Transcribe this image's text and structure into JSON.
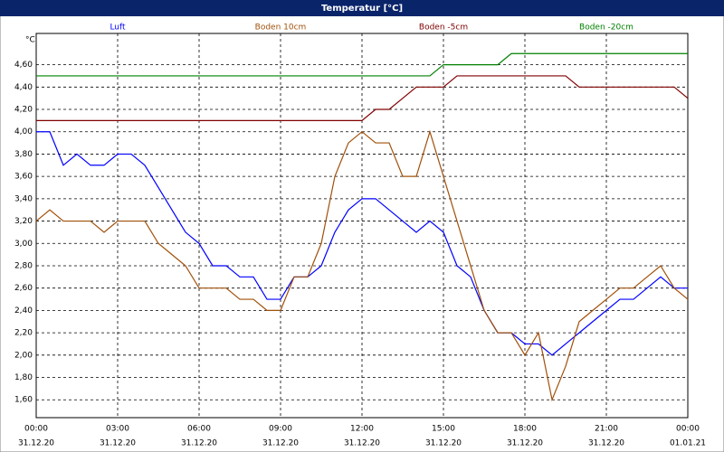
{
  "chart_data": {
    "type": "line",
    "title": "Temperatur [°C]",
    "y_unit_label": "°C",
    "legend": "top",
    "grid": true,
    "x": [
      0,
      0.5,
      1,
      1.5,
      2,
      2.5,
      3,
      3.5,
      4,
      4.5,
      5,
      5.5,
      6,
      6.5,
      7,
      7.5,
      8,
      8.5,
      9,
      9.5,
      10,
      10.5,
      11,
      11.5,
      12,
      12.5,
      13,
      13.5,
      14,
      14.5,
      15,
      15.5,
      16,
      16.5,
      17,
      17.5,
      18,
      18.5,
      19,
      19.5,
      20,
      20.5,
      21,
      21.5,
      22,
      22.5,
      23,
      23.5,
      24
    ],
    "xlim": [
      0,
      24
    ],
    "xticks": [
      {
        "value": 0,
        "label": "00:00"
      },
      {
        "value": 3,
        "label": "03:00"
      },
      {
        "value": 6,
        "label": "06:00"
      },
      {
        "value": 9,
        "label": "09:00"
      },
      {
        "value": 12,
        "label": "12:00"
      },
      {
        "value": 15,
        "label": "15:00"
      },
      {
        "value": 18,
        "label": "18:00"
      },
      {
        "value": 21,
        "label": "21:00"
      },
      {
        "value": 24,
        "label": "00:00"
      }
    ],
    "xtick_dates": [
      "31.12.20",
      "31.12.20",
      "31.12.20",
      "31.12.20",
      "31.12.20",
      "31.12.20",
      "31.12.20",
      "31.12.20",
      "01.01.21"
    ],
    "ylim": [
      1.44,
      4.88
    ],
    "yticks": [
      {
        "value": 1.6,
        "label": "1,60"
      },
      {
        "value": 1.8,
        "label": "1,80"
      },
      {
        "value": 2.0,
        "label": "2,00"
      },
      {
        "value": 2.2,
        "label": "2,20"
      },
      {
        "value": 2.4,
        "label": "2,40"
      },
      {
        "value": 2.6,
        "label": "2,60"
      },
      {
        "value": 2.8,
        "label": "2,80"
      },
      {
        "value": 3.0,
        "label": "3,00"
      },
      {
        "value": 3.2,
        "label": "3,20"
      },
      {
        "value": 3.4,
        "label": "3,40"
      },
      {
        "value": 3.6,
        "label": "3,60"
      },
      {
        "value": 3.8,
        "label": "3,80"
      },
      {
        "value": 4.0,
        "label": "4,00"
      },
      {
        "value": 4.2,
        "label": "4,20"
      },
      {
        "value": 4.4,
        "label": "4,40"
      },
      {
        "value": 4.6,
        "label": "4,60"
      }
    ],
    "series": [
      {
        "name": "Luft",
        "color": "#0000ff",
        "values": [
          4.0,
          4.0,
          3.7,
          3.8,
          3.7,
          3.7,
          3.8,
          3.8,
          3.7,
          3.5,
          3.3,
          3.1,
          3.0,
          2.8,
          2.8,
          2.7,
          2.7,
          2.5,
          2.5,
          2.7,
          2.7,
          2.8,
          3.1,
          3.3,
          3.4,
          3.4,
          3.3,
          3.2,
          3.1,
          3.2,
          3.1,
          2.8,
          2.7,
          2.4,
          2.2,
          2.2,
          2.1,
          2.1,
          2.0,
          2.1,
          2.2,
          2.3,
          2.4,
          2.5,
          2.5,
          2.6,
          2.7,
          2.6,
          2.6
        ]
      },
      {
        "name": "Boden 10cm",
        "color": "#a0500a",
        "values": [
          3.2,
          3.3,
          3.2,
          3.2,
          3.2,
          3.1,
          3.2,
          3.2,
          3.2,
          3.0,
          2.9,
          2.8,
          2.6,
          2.6,
          2.6,
          2.5,
          2.5,
          2.4,
          2.4,
          2.7,
          2.7,
          3.0,
          3.6,
          3.9,
          4.0,
          3.9,
          3.9,
          3.6,
          3.6,
          4.0,
          3.6,
          3.2,
          2.8,
          2.4,
          2.2,
          2.2,
          2.0,
          2.2,
          1.6,
          1.9,
          2.3,
          2.4,
          2.5,
          2.6,
          2.6,
          2.7,
          2.8,
          2.6,
          2.5
        ]
      },
      {
        "name": "Boden -5cm",
        "color": "#800000",
        "values": [
          4.1,
          4.1,
          4.1,
          4.1,
          4.1,
          4.1,
          4.1,
          4.1,
          4.1,
          4.1,
          4.1,
          4.1,
          4.1,
          4.1,
          4.1,
          4.1,
          4.1,
          4.1,
          4.1,
          4.1,
          4.1,
          4.1,
          4.1,
          4.1,
          4.1,
          4.2,
          4.2,
          4.3,
          4.4,
          4.4,
          4.4,
          4.5,
          4.5,
          4.5,
          4.5,
          4.5,
          4.5,
          4.5,
          4.5,
          4.5,
          4.4,
          4.4,
          4.4,
          4.4,
          4.4,
          4.4,
          4.4,
          4.4,
          4.3
        ]
      },
      {
        "name": "Boden -20cm",
        "color": "#008000",
        "values": [
          4.5,
          4.5,
          4.5,
          4.5,
          4.5,
          4.5,
          4.5,
          4.5,
          4.5,
          4.5,
          4.5,
          4.5,
          4.5,
          4.5,
          4.5,
          4.5,
          4.5,
          4.5,
          4.5,
          4.5,
          4.5,
          4.5,
          4.5,
          4.5,
          4.5,
          4.5,
          4.5,
          4.5,
          4.5,
          4.5,
          4.6,
          4.6,
          4.6,
          4.6,
          4.6,
          4.7,
          4.7,
          4.7,
          4.7,
          4.7,
          4.7,
          4.7,
          4.7,
          4.7,
          4.7,
          4.7,
          4.7,
          4.7,
          4.7
        ]
      }
    ]
  }
}
